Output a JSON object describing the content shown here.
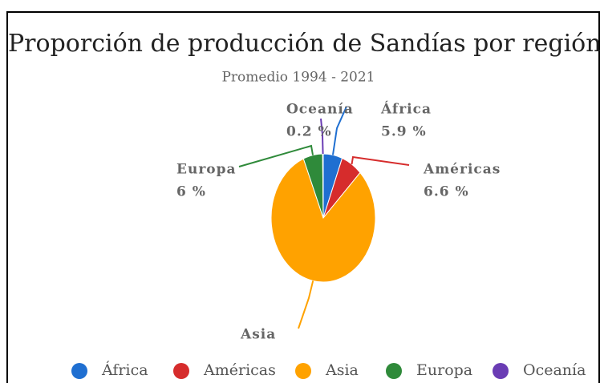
{
  "chart_data": {
    "type": "pie",
    "title": "Proporción de producción de Sandías por región",
    "subtitle": "Promedio 1994 - 2021",
    "categories": [
      "África",
      "Américas",
      "Asia",
      "Europa",
      "Oceanía"
    ],
    "values": [
      5.9,
      6.6,
      81.3,
      6,
      0.2
    ],
    "value_labels": [
      "5.9 %",
      "6.6 %",
      null,
      "6 %",
      "0.2 %"
    ],
    "colors": [
      "#1f6fd1",
      "#d62c2c",
      "#ffa200",
      "#2f8a3a",
      "#6a3cb4"
    ],
    "legend": "bottom"
  }
}
